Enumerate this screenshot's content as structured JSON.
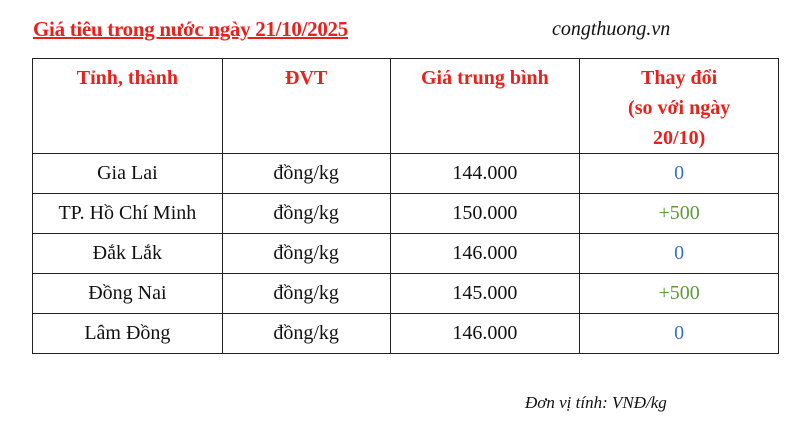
{
  "title": "Giá tiêu trong nước ngày 21/10/2025",
  "site": "congthuong.vn",
  "table": {
    "headers": [
      "Tỉnh, thành",
      "ĐVT",
      "Giá trung bình",
      "Thay đổi (so với ngày 20/10)"
    ],
    "header_change_lines": [
      "Thay đổi",
      "(so với ngày",
      "20/10)"
    ],
    "rows": [
      {
        "province": "Gia Lai",
        "unit": "đồng/kg",
        "price": "144.000",
        "change": "0"
      },
      {
        "province": "TP. Hồ Chí Minh",
        "unit": "đồng/kg",
        "price": "150.000",
        "change": "+500"
      },
      {
        "province": "Đắk Lắk",
        "unit": "đồng/kg",
        "price": "146.000",
        "change": "0"
      },
      {
        "province": "Đồng Nai",
        "unit": "đồng/kg",
        "price": "145.000",
        "change": "+500"
      },
      {
        "province": "Lâm Đồng",
        "unit": "đồng/kg",
        "price": "146.000",
        "change": "0"
      }
    ]
  },
  "footnote": "Đơn vị tính: VNĐ/kg",
  "colors": {
    "header": "#e8211c",
    "positive": "#5e9a3c",
    "zero": "#3c6fc4"
  }
}
